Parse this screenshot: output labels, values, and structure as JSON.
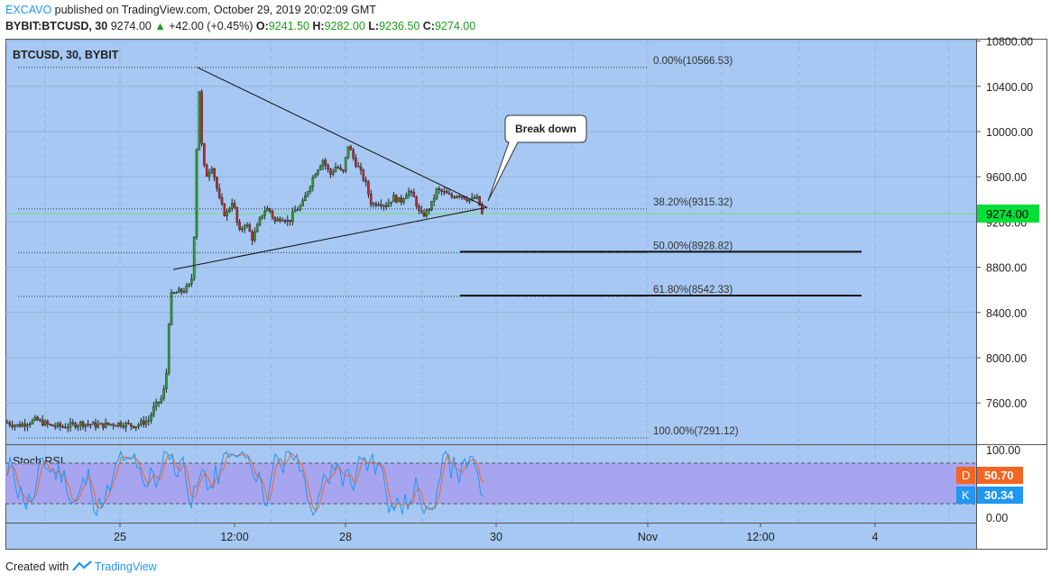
{
  "header": {
    "author": "EXCAVO",
    "published_text": "published on TradingView.com, October 29, 2019 20:02:09 GMT",
    "symbol": "BYBIT:BTCUSD, 30",
    "last": "9274.00",
    "arrow": "▲",
    "change": "+42.00 (+0.45%)",
    "o_label": "O:",
    "o_value": "9241.50",
    "h_label": "H:",
    "h_value": "9282.00",
    "l_label": "L:",
    "l_value": "9236.50",
    "c_label": "C:",
    "c_value": "9274.00"
  },
  "footer": {
    "created_text": "Created with",
    "brand": "TradingView"
  },
  "colors": {
    "background": "#a6c8f2",
    "up_candle": "#2ca02c",
    "down_candle": "#c0282d",
    "price_line": "#6ee07a",
    "rsi_band": "#a79ff0",
    "rsi_d": "#f26522",
    "rsi_k": "#2196f3"
  },
  "chart_data": {
    "type": "candlestick",
    "title": "BTCUSD, 30, BYBIT",
    "y_axis": {
      "ticks": [
        7600,
        8000,
        8400,
        8800,
        9200,
        9600,
        10000,
        10400,
        10800
      ],
      "tick_labels": [
        "7600.00",
        "8000.00",
        "8400.00",
        "8800.00",
        "9200.00",
        "9600.00",
        "10000.00",
        "10400.00",
        "10800.00"
      ],
      "range": [
        7150,
        10850
      ]
    },
    "x_axis": {
      "tick_labels": [
        "25",
        "12:00",
        "28",
        "30",
        "Nov",
        "12:00",
        "4"
      ]
    },
    "current_price": {
      "label": "9274.00",
      "value": 9274
    },
    "price_path": [
      [
        0,
        7950
      ],
      [
        2,
        7450
      ],
      [
        10,
        7420
      ],
      [
        20,
        7400
      ],
      [
        40,
        7450
      ],
      [
        55,
        7400
      ],
      [
        70,
        7390
      ],
      [
        90,
        7420
      ],
      [
        110,
        7400
      ],
      [
        130,
        7420
      ],
      [
        150,
        7400
      ],
      [
        165,
        7450
      ],
      [
        170,
        7550
      ],
      [
        180,
        7650
      ],
      [
        184,
        7800
      ],
      [
        187,
        8300
      ],
      [
        190,
        8550
      ],
      [
        197,
        8580
      ],
      [
        205,
        8600
      ],
      [
        212,
        8650
      ],
      [
        216,
        9200
      ],
      [
        218,
        9850
      ],
      [
        221,
        10400
      ],
      [
        224,
        9800
      ],
      [
        228,
        9600
      ],
      [
        235,
        9700
      ],
      [
        243,
        9400
      ],
      [
        250,
        9250
      ],
      [
        258,
        9400
      ],
      [
        265,
        9100
      ],
      [
        272,
        9200
      ],
      [
        280,
        9050
      ],
      [
        285,
        9150
      ],
      [
        292,
        9300
      ],
      [
        298,
        9320
      ],
      [
        305,
        9200
      ],
      [
        312,
        9250
      ],
      [
        320,
        9200
      ],
      [
        327,
        9300
      ],
      [
        335,
        9350
      ],
      [
        342,
        9500
      ],
      [
        350,
        9650
      ],
      [
        358,
        9750
      ],
      [
        366,
        9620
      ],
      [
        373,
        9700
      ],
      [
        380,
        9620
      ],
      [
        386,
        9880
      ],
      [
        392,
        9760
      ],
      [
        399,
        9650
      ],
      [
        405,
        9550
      ],
      [
        412,
        9350
      ],
      [
        420,
        9380
      ],
      [
        428,
        9350
      ],
      [
        436,
        9420
      ],
      [
        444,
        9380
      ],
      [
        452,
        9480
      ],
      [
        460,
        9400
      ],
      [
        466,
        9250
      ],
      [
        472,
        9280
      ],
      [
        478,
        9350
      ],
      [
        484,
        9480
      ],
      [
        492,
        9460
      ],
      [
        500,
        9420
      ],
      [
        508,
        9450
      ],
      [
        515,
        9420
      ],
      [
        522,
        9390
      ],
      [
        528,
        9420
      ],
      [
        533,
        9320
      ],
      [
        537,
        9274
      ]
    ],
    "annotations": {
      "triangle_upper_start": [
        219,
        10566.53
      ],
      "triangle_lower_start": [
        192,
        8780
      ],
      "apex": [
        540,
        9330
      ],
      "callout": "Break down"
    },
    "fibonacci": [
      {
        "label": "0.00%(10566.53)",
        "value": 10566.53
      },
      {
        "label": "38.20%(9315.32)",
        "value": 9315.32
      },
      {
        "label": "50.00%(8928.82)",
        "value": 8928.82
      },
      {
        "label": "61.80%(8542.33)",
        "value": 8542.33
      },
      {
        "label": "100.00%(7291.12)",
        "value": 7291.12
      }
    ],
    "stoch_rsi": {
      "title": "Stoch RSI",
      "axis_labels": [
        "100.00",
        "0.00"
      ],
      "band": [
        20,
        80
      ],
      "d_label": "D",
      "d_value": "50.70",
      "k_label": "K",
      "k_value": "30.34"
    }
  }
}
